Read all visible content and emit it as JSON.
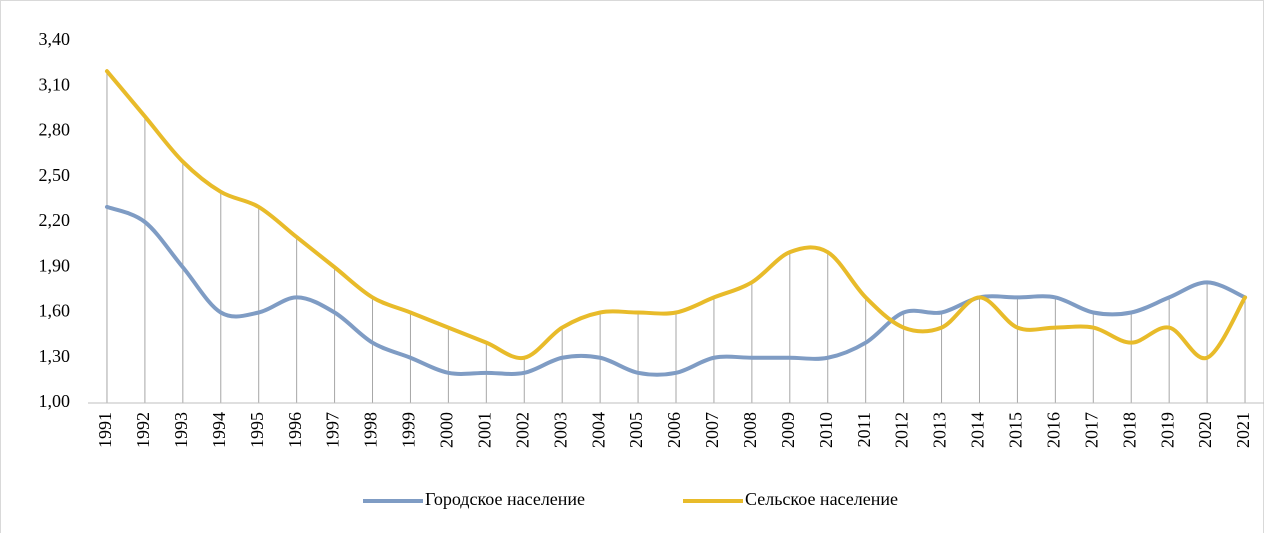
{
  "chart_data": {
    "type": "line",
    "categories": [
      "1991",
      "1992",
      "1993",
      "1994",
      "1995",
      "1996",
      "1997",
      "1998",
      "1999",
      "2000",
      "2001",
      "2002",
      "2003",
      "2004",
      "2005",
      "2006",
      "2007",
      "2008",
      "2009",
      "2010",
      "2011",
      "2012",
      "2013",
      "2014",
      "2015",
      "2016",
      "2017",
      "2018",
      "2019",
      "2020",
      "2021"
    ],
    "series": [
      {
        "name": "Городское население",
        "color": "#7f9cc4",
        "values": [
          2.3,
          2.2,
          1.9,
          1.6,
          1.6,
          1.7,
          1.6,
          1.4,
          1.3,
          1.2,
          1.2,
          1.2,
          1.3,
          1.3,
          1.2,
          1.2,
          1.3,
          1.3,
          1.3,
          1.3,
          1.4,
          1.6,
          1.6,
          1.7,
          1.7,
          1.7,
          1.6,
          1.6,
          1.7,
          1.8,
          1.7
        ]
      },
      {
        "name": "Сельское население",
        "color": "#e8bb2a",
        "values": [
          3.2,
          2.9,
          2.6,
          2.4,
          2.3,
          2.1,
          1.9,
          1.7,
          1.6,
          1.5,
          1.4,
          1.3,
          1.5,
          1.6,
          1.6,
          1.6,
          1.7,
          1.8,
          2.0,
          2.0,
          1.7,
          1.5,
          1.5,
          1.7,
          1.5,
          1.5,
          1.5,
          1.4,
          1.5,
          1.3,
          1.7
        ]
      }
    ],
    "ylim": [
      1,
      3.4
    ],
    "yticks": [
      {
        "value": 1,
        "label": "1,00"
      },
      {
        "value": 1.3,
        "label": "1,30"
      },
      {
        "value": 1.6,
        "label": "1,60"
      },
      {
        "value": 1.9,
        "label": "1,90"
      },
      {
        "value": 2.2,
        "label": "2,20"
      },
      {
        "value": 2.5,
        "label": "2,50"
      },
      {
        "value": 2.8,
        "label": "2,80"
      },
      {
        "value": 3.1,
        "label": "3,10"
      },
      {
        "value": 3.4,
        "label": "3,40"
      }
    ],
    "grid": false,
    "drop_lines": true,
    "smooth": true,
    "legend": "bottom"
  }
}
